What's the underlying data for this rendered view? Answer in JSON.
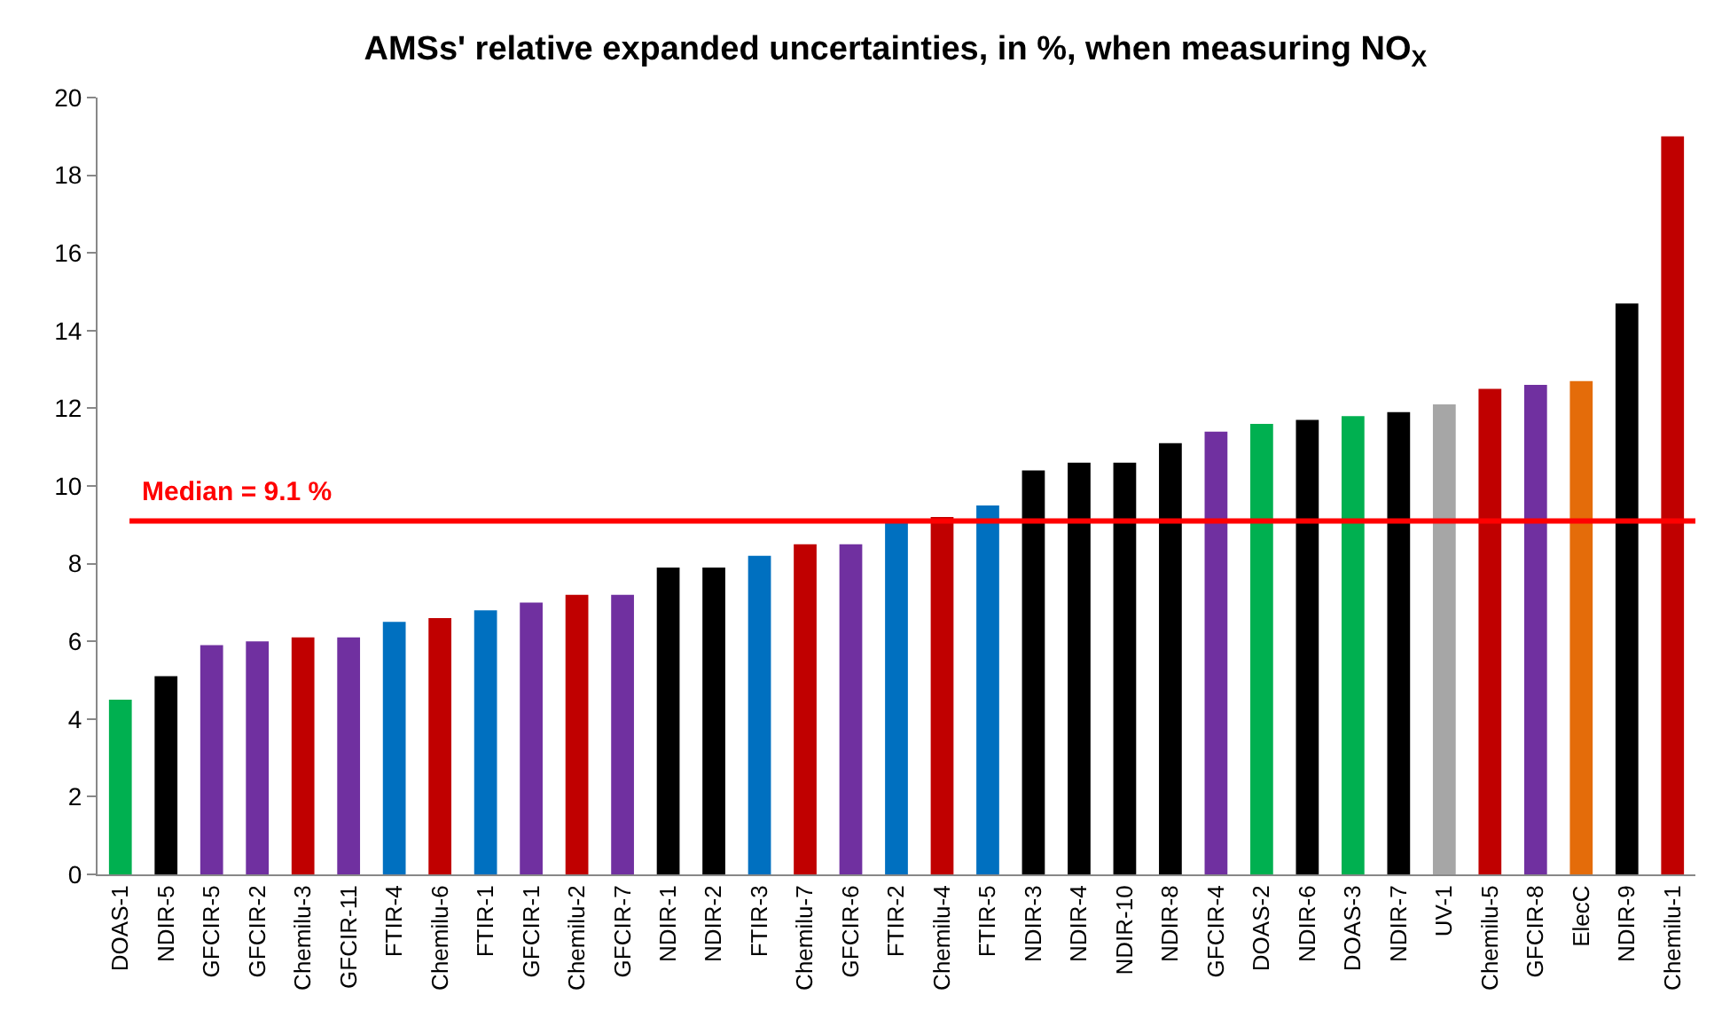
{
  "chart_data": {
    "type": "bar",
    "title": "AMSs' relative expanded uncertainties, in %, when measuring NO$_{X}$",
    "categories": [
      "DOAS-1",
      "NDIR-5",
      "GFCIR-5",
      "GFCIR-2",
      "Chemilu-3",
      "GFCIR-11",
      "FTIR-4",
      "Chemilu-6",
      "FTIR-1",
      "GFCIR-1",
      "Chemilu-2",
      "GFCIR-7",
      "NDIR-1",
      "NDIR-2",
      "FTIR-3",
      "Chemilu-7",
      "GFCIR-6",
      "FTIR-2",
      "Chemilu-4",
      "FTIR-5",
      "NDIR-3",
      "NDIR-4",
      "NDIR-10",
      "NDIR-8",
      "GFCIR-4",
      "DOAS-2",
      "NDIR-6",
      "DOAS-3",
      "NDIR-7",
      "UV-1",
      "Chemilu-5",
      "GFCIR-8",
      "ElecC",
      "NDIR-9",
      "Chemilu-1"
    ],
    "values": [
      4.5,
      5.1,
      5.9,
      6.0,
      6.1,
      6.1,
      6.5,
      6.6,
      6.8,
      7.0,
      7.2,
      7.2,
      7.9,
      7.9,
      8.2,
      8.5,
      8.5,
      9.1,
      9.2,
      9.5,
      10.4,
      10.6,
      10.6,
      11.1,
      11.4,
      11.6,
      11.7,
      11.8,
      11.9,
      12.1,
      12.5,
      12.6,
      12.7,
      14.7,
      19.0
    ],
    "colors": [
      "#00b050",
      "#000000",
      "#7030a0",
      "#7030a0",
      "#c00000",
      "#7030a0",
      "#0070c0",
      "#c00000",
      "#0070c0",
      "#7030a0",
      "#c00000",
      "#7030a0",
      "#000000",
      "#000000",
      "#0070c0",
      "#c00000",
      "#7030a0",
      "#0070c0",
      "#c00000",
      "#0070c0",
      "#000000",
      "#000000",
      "#000000",
      "#000000",
      "#7030a0",
      "#00b050",
      "#000000",
      "#00b050",
      "#000000",
      "#a6a6a6",
      "#c00000",
      "#7030a0",
      "#e46c0a",
      "#000000",
      "#c00000"
    ],
    "ylim": [
      0,
      20
    ],
    "yticks": [
      0,
      2,
      4,
      6,
      8,
      10,
      12,
      14,
      16,
      18,
      20
    ],
    "ref_lines": [
      {
        "axis": "y",
        "value": 9.1,
        "label": "Median = 9.1 %",
        "color": "#ff0000",
        "line_style": "solid"
      }
    ],
    "grid": false
  }
}
